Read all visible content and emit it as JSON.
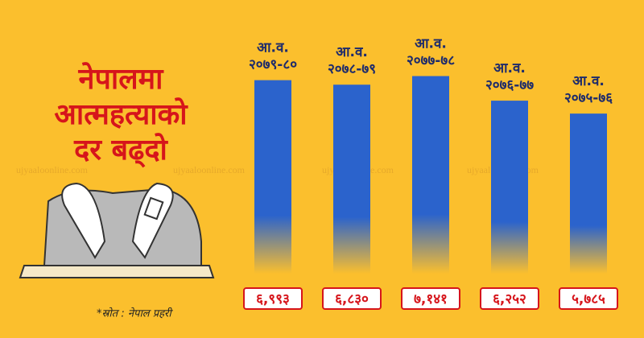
{
  "chart_data": {
    "type": "bar",
    "title_lines": [
      "नेपालमा",
      "आत्महत्याको",
      "दर बढ्दो"
    ],
    "categories": [
      [
        "आ.व.",
        "२०७९-८०"
      ],
      [
        "आ.व.",
        "२०७८-७९"
      ],
      [
        "आ.व.",
        "२०७७-७८"
      ],
      [
        "आ.व.",
        "२०७६-७७"
      ],
      [
        "आ.व.",
        "२०७५-७६"
      ]
    ],
    "values": [
      6993,
      6830,
      7141,
      6252,
      5785
    ],
    "value_labels": [
      "६,९९३",
      "६,८३०",
      "७,१४१",
      "६,२५२",
      "५,७८५"
    ],
    "color": "#2b63cc",
    "ylim": [
      0,
      8000
    ],
    "source": "*स्रोत : नेपाल प्रहरी",
    "watermark": "ujyaaloonline.com"
  }
}
